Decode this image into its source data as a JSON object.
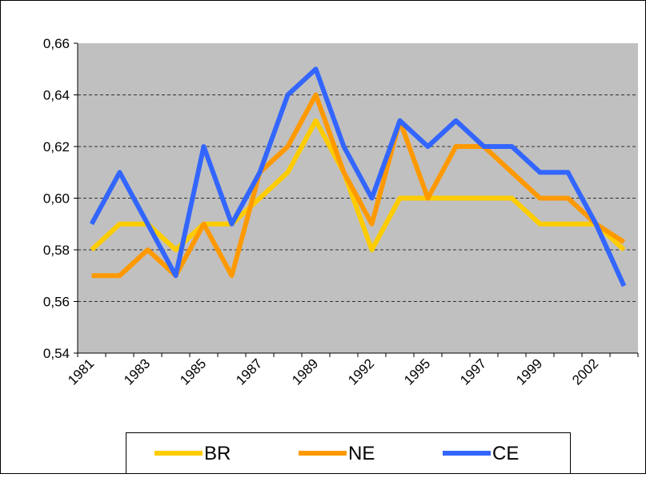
{
  "chart_data": {
    "type": "line",
    "categories": [
      "1981",
      null,
      "1983",
      null,
      "1985",
      null,
      "1987",
      null,
      "1989",
      null,
      "1992",
      null,
      "1995",
      null,
      "1997",
      null,
      "1999",
      null,
      "2002",
      null
    ],
    "series": [
      {
        "name": "BR",
        "color": "#ffcc00",
        "values": [
          0.58,
          0.59,
          0.59,
          0.58,
          0.59,
          0.59,
          0.6,
          0.61,
          0.63,
          0.61,
          0.58,
          0.6,
          0.6,
          0.6,
          0.6,
          0.6,
          0.59,
          0.59,
          0.59,
          0.58
        ]
      },
      {
        "name": "NE",
        "color": "#ff9900",
        "values": [
          0.57,
          0.57,
          0.58,
          0.57,
          0.59,
          0.57,
          0.61,
          0.62,
          0.64,
          0.61,
          0.59,
          0.63,
          0.6,
          0.62,
          0.62,
          0.61,
          0.6,
          0.6,
          0.59,
          0.583
        ]
      },
      {
        "name": "CE",
        "color": "#3366ff",
        "values": [
          0.59,
          0.61,
          0.59,
          0.57,
          0.62,
          0.59,
          0.61,
          0.64,
          0.65,
          0.62,
          0.6,
          0.63,
          0.62,
          0.63,
          0.62,
          0.62,
          0.61,
          0.61,
          0.59,
          0.566
        ]
      }
    ],
    "ylim": [
      0.54,
      0.66
    ],
    "yticks": [
      {
        "value": 0.54,
        "label": "0,54"
      },
      {
        "value": 0.56,
        "label": "0,56"
      },
      {
        "value": 0.58,
        "label": "0,58"
      },
      {
        "value": 0.6,
        "label": "0,60"
      },
      {
        "value": 0.62,
        "label": "0,62"
      },
      {
        "value": 0.64,
        "label": "0,64"
      },
      {
        "value": 0.66,
        "label": "0,66"
      }
    ],
    "grid": true,
    "legend": "bottom",
    "plot_background": "#c0c0c0"
  }
}
